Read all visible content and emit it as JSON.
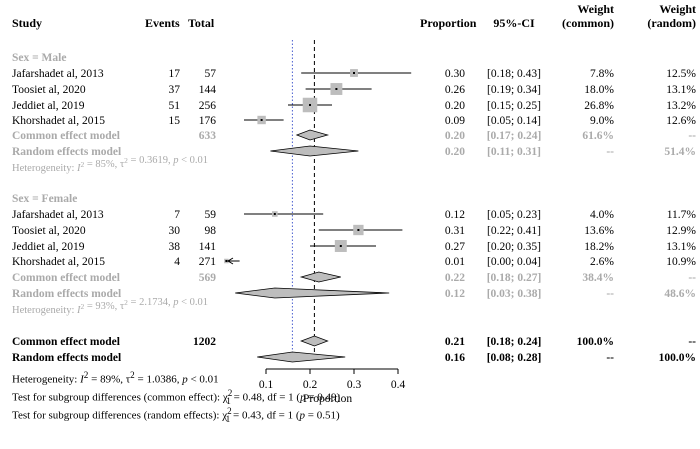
{
  "headers": {
    "study": "Study",
    "events": "Events",
    "total": "Total",
    "proportion": "Proportion",
    "ci": "95%-CI",
    "weight_common_1": "Weight",
    "weight_common_2": "(common)",
    "weight_random_1": "Weight",
    "weight_random_2": "(random)"
  },
  "chart_data": {
    "type": "forest",
    "xlabel": "Proportion",
    "xticks": [
      "0.1",
      "0.2",
      "0.3",
      "0.4"
    ],
    "xlim": [
      0.02,
      0.45
    ],
    "groups": [
      {
        "label": "Sex = Male",
        "studies": [
          {
            "study": "Jafarshadet al, 2013",
            "events": "17",
            "total": "57",
            "est": 0.3,
            "lo": 0.18,
            "hi": 0.43,
            "prop": "0.30",
            "ci": "[0.18; 0.43]",
            "w_common": "7.8%",
            "w_random": "12.5%",
            "wnum": 7.8
          },
          {
            "study": "Toosiet al, 2020",
            "events": "37",
            "total": "144",
            "est": 0.26,
            "lo": 0.19,
            "hi": 0.34,
            "prop": "0.26",
            "ci": "[0.19; 0.34]",
            "w_common": "18.0%",
            "w_random": "13.1%",
            "wnum": 18.0
          },
          {
            "study": "Jeddiet al, 2019",
            "events": "51",
            "total": "256",
            "est": 0.2,
            "lo": 0.15,
            "hi": 0.25,
            "prop": "0.20",
            "ci": "[0.15; 0.25]",
            "w_common": "26.8%",
            "w_random": "13.2%",
            "wnum": 26.8
          },
          {
            "study": "Khorshadet al, 2015",
            "events": "15",
            "total": "176",
            "est": 0.09,
            "lo": 0.05,
            "hi": 0.14,
            "prop": "0.09",
            "ci": "[0.05; 0.14]",
            "w_common": "9.0%",
            "w_random": "12.6%",
            "wnum": 9.0
          }
        ],
        "common": {
          "label": "Common effect model",
          "total": "633",
          "est": 0.2,
          "lo": 0.17,
          "hi": 0.24,
          "prop": "0.20",
          "ci": "[0.17; 0.24]",
          "w_common": "61.6%",
          "w_random": "--"
        },
        "random": {
          "label": "Random effects model",
          "est": 0.2,
          "lo": 0.11,
          "hi": 0.31,
          "prop": "0.20",
          "ci": "[0.11; 0.31]",
          "w_common": "--",
          "w_random": "51.4%"
        },
        "heterogeneity": {
          "prefix": "Heterogeneity: ",
          "i2": "I",
          "i2_rest": " = 85%, ",
          "tau": "τ",
          "tau_rest": " = 0.3619, ",
          "p": "p",
          "p_rest": " < 0.01"
        }
      },
      {
        "label": "Sex = Female",
        "studies": [
          {
            "study": "Jafarshadet al, 2013",
            "events": "7",
            "total": "59",
            "est": 0.12,
            "lo": 0.05,
            "hi": 0.23,
            "prop": "0.12",
            "ci": "[0.05; 0.23]",
            "w_common": "4.0%",
            "w_random": "11.7%",
            "wnum": 4.0
          },
          {
            "study": "Toosiet al, 2020",
            "events": "30",
            "total": "98",
            "est": 0.31,
            "lo": 0.22,
            "hi": 0.41,
            "prop": "0.31",
            "ci": "[0.22; 0.41]",
            "w_common": "13.6%",
            "w_random": "12.9%",
            "wnum": 13.6
          },
          {
            "study": "Jeddiet al, 2019",
            "events": "38",
            "total": "141",
            "est": 0.27,
            "lo": 0.2,
            "hi": 0.35,
            "prop": "0.27",
            "ci": "[0.20; 0.35]",
            "w_common": "18.2%",
            "w_random": "13.1%",
            "wnum": 18.2
          },
          {
            "study": "Khorshadet al, 2015",
            "events": "4",
            "total": "271",
            "est": 0.01,
            "lo": 0.0,
            "hi": 0.04,
            "prop": "0.01",
            "ci": "[0.00; 0.04]",
            "w_common": "2.6%",
            "w_random": "10.9%",
            "wnum": 2.6
          }
        ],
        "common": {
          "label": "Common effect model",
          "total": "569",
          "est": 0.22,
          "lo": 0.18,
          "hi": 0.27,
          "prop": "0.22",
          "ci": "[0.18; 0.27]",
          "w_common": "38.4%",
          "w_random": "--"
        },
        "random": {
          "label": "Random effects model",
          "est": 0.12,
          "lo": 0.03,
          "hi": 0.38,
          "prop": "0.12",
          "ci": "[0.03; 0.38]",
          "w_common": "--",
          "w_random": "48.6%"
        },
        "heterogeneity": {
          "prefix": "Heterogeneity: ",
          "i2": "I",
          "i2_rest": " = 93%, ",
          "tau": "τ",
          "tau_rest": " = 2.1734, ",
          "p": "p",
          "p_rest": " < 0.01"
        }
      }
    ],
    "overall": {
      "common": {
        "label": "Common effect model",
        "total": "1202",
        "est": 0.21,
        "lo": 0.18,
        "hi": 0.24,
        "prop": "0.21",
        "ci": "[0.18; 0.24]",
        "w_common": "100.0%",
        "w_random": "--"
      },
      "random": {
        "label": "Random effects model",
        "est": 0.16,
        "lo": 0.08,
        "hi": 0.28,
        "prop": "0.16",
        "ci": "[0.08; 0.28]",
        "w_common": "--",
        "w_random": "100.0%"
      }
    },
    "reference_lines": {
      "common": 0.21,
      "random": 0.16
    }
  },
  "footer": {
    "het_prefix": "Heterogeneity: ",
    "het_i": "I",
    "het_i_rest": " = 89%, ",
    "het_tau": "τ",
    "het_tau_rest": " = 1.0386, ",
    "het_p": "p",
    "het_p_rest": " < 0.01",
    "test1_prefix": "Test for subgroup differences (common effect): ",
    "test1_chi": "χ",
    "test1_rest": " = 0.48, df = 1 (",
    "test1_p": "p",
    "test1_end": " = 0.49)",
    "test2_prefix": "Test for subgroup differences (random effects): ",
    "test2_chi": "χ",
    "test2_rest": " = 0.43, df = 1 (",
    "test2_p": "p",
    "test2_end": " = 0.51)",
    "sup2": "2",
    "sub1": "1"
  }
}
